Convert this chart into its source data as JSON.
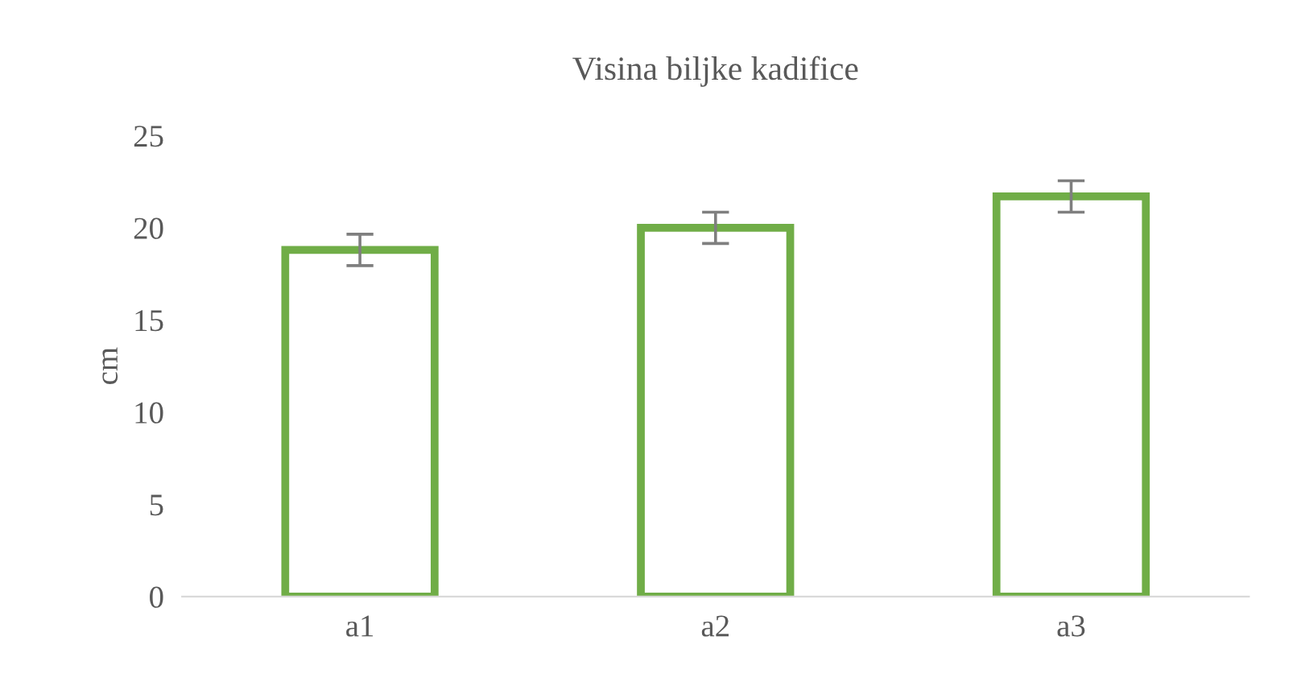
{
  "chart_data": {
    "type": "bar",
    "title": "Visina biljke kadifice",
    "ylabel": "cm",
    "categories": [
      "a1",
      "a2",
      "a3"
    ],
    "series": [
      {
        "color": "#70ad47",
        "values": [
          18.8,
          20.0,
          21.7
        ],
        "errors": [
          0.85,
          0.85,
          0.85
        ]
      }
    ],
    "ylim": [
      0,
      25
    ],
    "yticks": [
      0,
      5,
      10,
      15,
      20,
      25
    ],
    "grid": false,
    "legend": false
  }
}
